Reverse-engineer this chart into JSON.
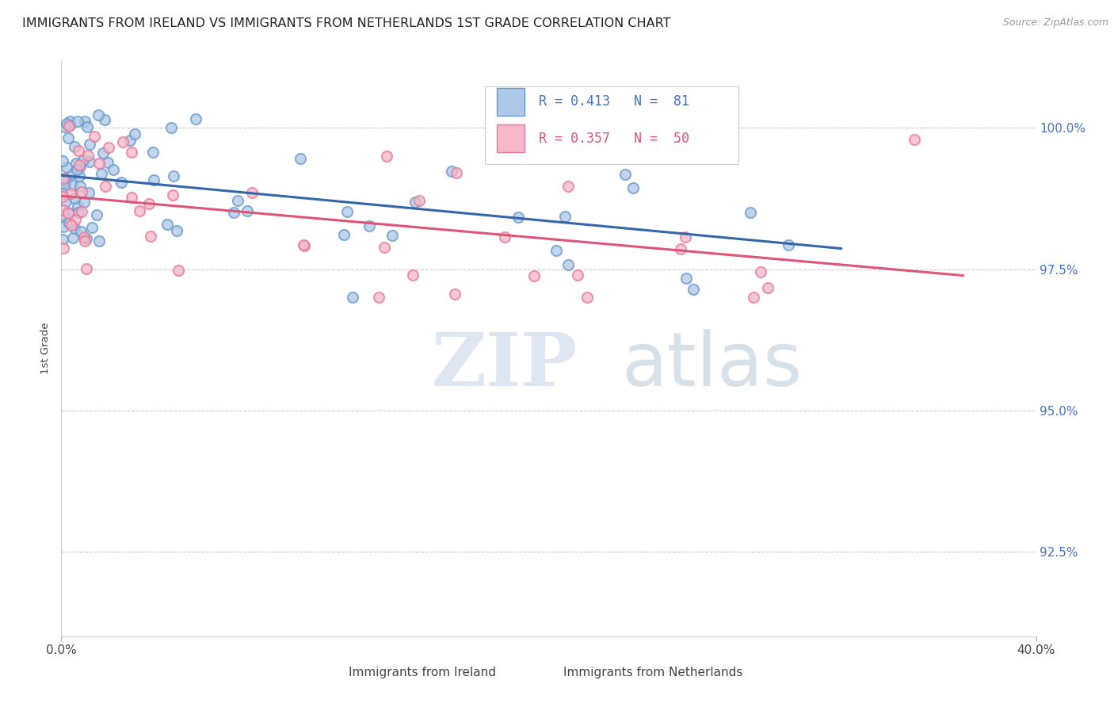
{
  "title": "IMMIGRANTS FROM IRELAND VS IMMIGRANTS FROM NETHERLANDS 1ST GRADE CORRELATION CHART",
  "source": "Source: ZipAtlas.com",
  "ylabel": "1st Grade",
  "y_ticks": [
    92.5,
    95.0,
    97.5,
    100.0
  ],
  "y_tick_labels": [
    "92.5%",
    "95.0%",
    "97.5%",
    "100.0%"
  ],
  "xlim": [
    0.0,
    40.0
  ],
  "ylim": [
    91.0,
    101.2
  ],
  "series1_label": "Immigrants from Ireland",
  "series1_facecolor": "#aec8e8",
  "series1_edgecolor": "#6699cc",
  "series1_line_color": "#3366aa",
  "series1_R": 0.413,
  "series1_N": 81,
  "series2_label": "Immigrants from Netherlands",
  "series2_facecolor": "#f4b8c8",
  "series2_edgecolor": "#e87898",
  "series2_line_color": "#dd5577",
  "series2_R": 0.357,
  "series2_N": 50,
  "watermark_zip": "ZIP",
  "watermark_atlas": "atlas",
  "background_color": "#ffffff",
  "legend_R1": "R = 0.413",
  "legend_N1": "N =  81",
  "legend_R2": "R = 0.357",
  "legend_N2": "N =  50",
  "title_fontsize": 11.5,
  "source_fontsize": 9,
  "axis_tick_color": "#4472c4",
  "marker_size": 90
}
